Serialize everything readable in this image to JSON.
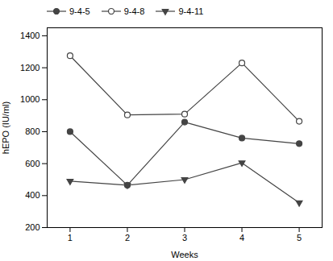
{
  "chart_data": {
    "type": "line",
    "x": [
      1,
      2,
      3,
      4,
      5
    ],
    "series": [
      {
        "name": "9-4-5",
        "color": "#444444",
        "marker": "circle",
        "values": [
          800,
          465,
          860,
          760,
          725
        ]
      },
      {
        "name": "9-4-8",
        "color": "#444444",
        "marker": "circle-open",
        "values": [
          1275,
          905,
          910,
          1230,
          865
        ]
      },
      {
        "name": "9-4-11",
        "color": "#444444",
        "marker": "triangle-down",
        "values": [
          490,
          465,
          500,
          605,
          355
        ]
      }
    ],
    "xlabel": "Weeks",
    "ylabel": "hEPO (IU/ml)",
    "xlim": [
      0.6,
      5.4
    ],
    "xticks": [
      1,
      2,
      3,
      4,
      5
    ],
    "ylim": [
      200,
      1450
    ],
    "yticks": [
      200,
      400,
      600,
      800,
      1000,
      1200,
      1400
    ],
    "legend": "upper left",
    "grid": false
  }
}
